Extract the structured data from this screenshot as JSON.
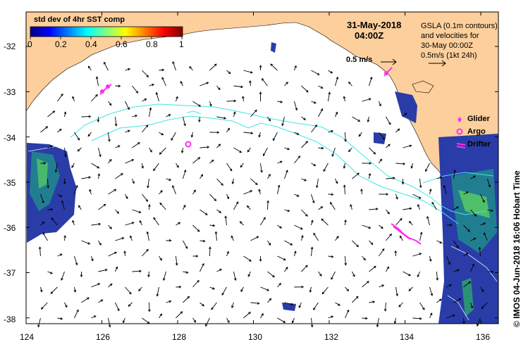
{
  "colorbar": {
    "title": "std dev of 4hr SST comp",
    "ticks": [
      "0",
      "0.2",
      "0.4",
      "0.6",
      "0.8",
      "1"
    ]
  },
  "timestamp": {
    "date": "31-May-2018",
    "time": "04:00Z"
  },
  "info_box": {
    "lines": [
      "GSLA (0.1m contours)",
      "and velocities for",
      "30-May 00:00Z",
      "0.5m/s (1kt 24h)"
    ]
  },
  "scale_arrow_label": "0.5 m/s",
  "legend": {
    "glider": "Glider",
    "argo": "Argo",
    "drifter": "Drifter"
  },
  "axes": {
    "x_ticks": [
      "124",
      "126",
      "128",
      "130",
      "132",
      "134",
      "136"
    ],
    "y_ticks": [
      "-32",
      "-33",
      "-34",
      "-35",
      "-36",
      "-37",
      "-38"
    ]
  },
  "credit": "© IMOS 04-Jun-2018 16:06 Hobart Time",
  "colors": {
    "land": "#fccf9c",
    "contour": "#3fe6e6",
    "markers": "#ff2ef0",
    "arrows": "#000000"
  }
}
